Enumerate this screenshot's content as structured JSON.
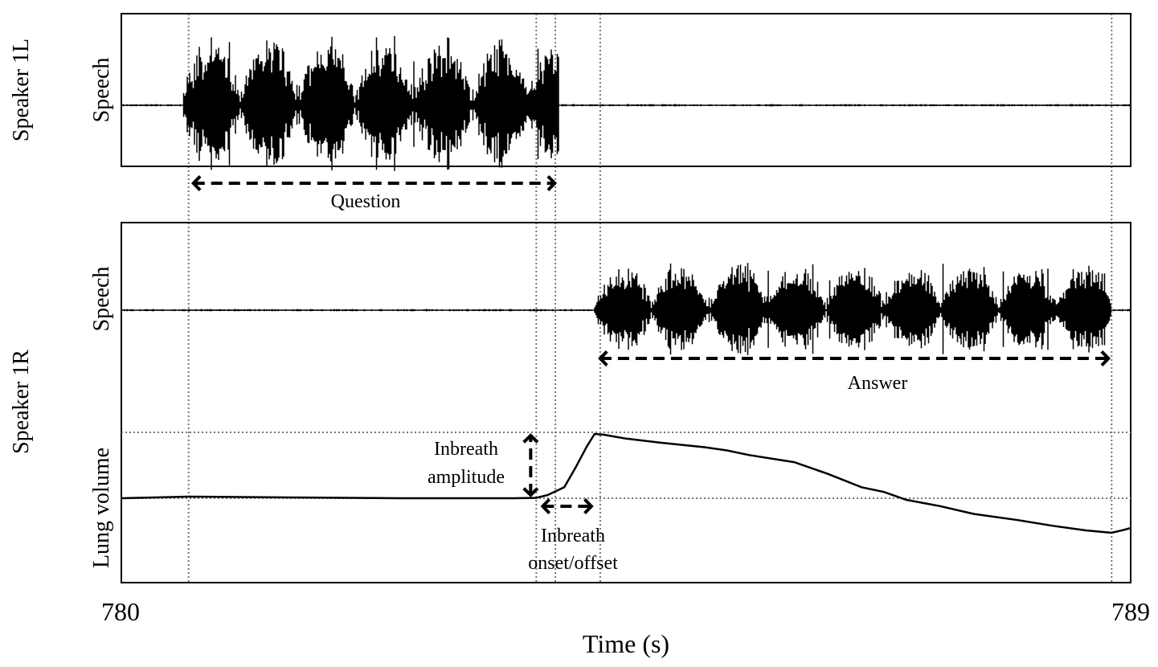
{
  "chart_data": {
    "type": "line",
    "xlabel": "Time (s)",
    "x_ticks": [
      "780",
      "789"
    ],
    "xlim": [
      780,
      789
    ],
    "grid": false,
    "markers_time": [
      780.6,
      783.7,
      783.87,
      784.27,
      788.83
    ],
    "panels": [
      {
        "speaker_label": "Speaker 1L",
        "ylabel": "Speech",
        "signal": "Speech waveform of the question",
        "active_segments": [
          [
            780.55,
            783.9
          ]
        ],
        "annotation": {
          "label": "Question",
          "x_range": [
            780.6,
            783.85
          ]
        }
      },
      {
        "speaker_label": "Speaker 1R",
        "ylabel": "Speech",
        "signal": "Speech waveform of the answer",
        "active_segments": [
          [
            784.22,
            788.83
          ]
        ],
        "annotation": {
          "label": "Answer",
          "x_range": [
            784.27,
            788.83
          ]
        }
      },
      {
        "speaker_label": "Speaker 1R",
        "ylabel": "Lung volume",
        "series": {
          "x": [
            780.0,
            780.6,
            781.5,
            782.5,
            783.5,
            783.7,
            783.8,
            783.95,
            784.05,
            784.15,
            784.22,
            784.3,
            784.5,
            784.8,
            785.2,
            785.4,
            785.6,
            786.0,
            786.3,
            786.6,
            786.8,
            787.0,
            787.3,
            787.6,
            788.0,
            788.3,
            788.6,
            788.83,
            788.95,
            789.0
          ],
          "y": [
            0.16,
            0.18,
            0.17,
            0.16,
            0.16,
            0.165,
            0.2,
            0.3,
            0.55,
            0.82,
            0.98,
            0.97,
            0.92,
            0.87,
            0.81,
            0.77,
            0.71,
            0.62,
            0.47,
            0.3,
            0.24,
            0.14,
            0.06,
            -0.04,
            -0.12,
            -0.19,
            -0.25,
            -0.28,
            -0.24,
            -0.22
          ]
        },
        "reference_levels": [
          1.0,
          0.16
        ],
        "annotations": [
          {
            "label_lines": [
              "Inbreath",
              "amplitude"
            ],
            "y_range": [
              0.16,
              0.98
            ],
            "at_x": 783.7
          },
          {
            "label_lines": [
              "Inbreath",
              "onset/offset"
            ],
            "x_range": [
              783.7,
              784.22
            ]
          }
        ]
      }
    ]
  }
}
